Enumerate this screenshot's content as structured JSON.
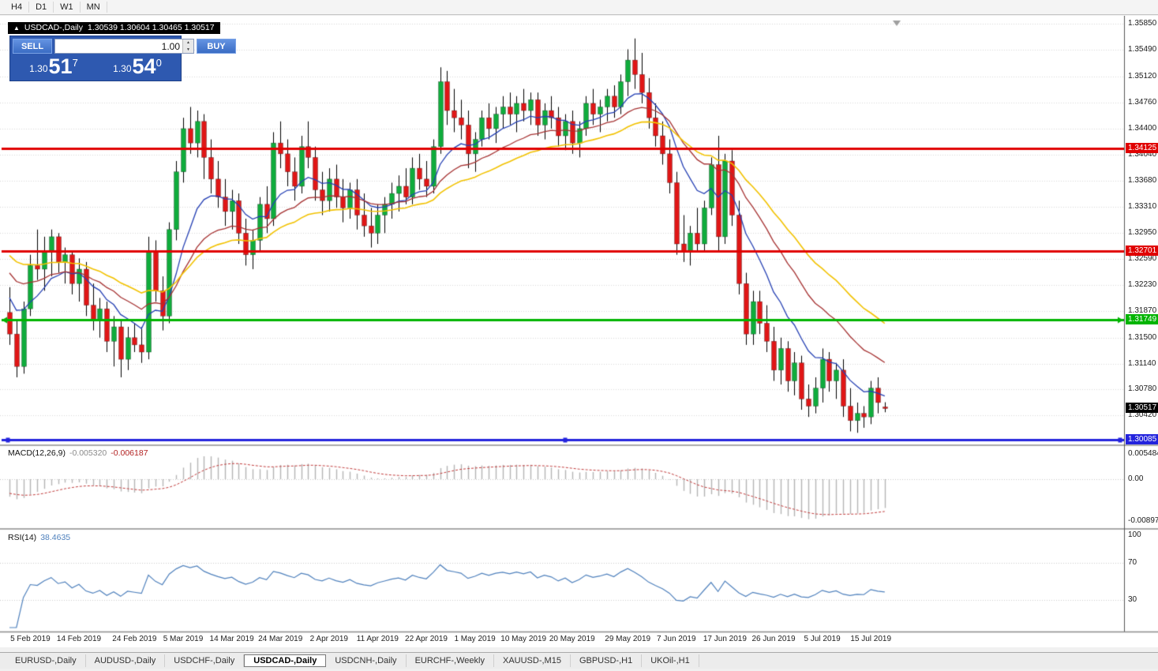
{
  "window": {
    "timeframes": [
      "H4",
      "D1",
      "W1",
      "MN"
    ]
  },
  "chart": {
    "symbol_label": "USDCAD-,Daily",
    "ohlc_values": "1.30539 1.30604 1.30465 1.30517"
  },
  "trade_panel": {
    "sell_label": "SELL",
    "buy_label": "BUY",
    "volume": "1.00",
    "sell_price": {
      "base": "1.30",
      "pips": "51",
      "frac": "7"
    },
    "buy_price": {
      "base": "1.30",
      "pips": "54",
      "frac": "0"
    }
  },
  "price_axis": {
    "labels": [
      "1.35850",
      "1.35490",
      "1.35120",
      "1.34760",
      "1.34400",
      "1.34040",
      "1.33680",
      "1.33310",
      "1.32950",
      "1.32590",
      "1.32230",
      "1.31870",
      "1.31500",
      "1.31140",
      "1.30780",
      "1.30420"
    ],
    "current_price": "1.30517",
    "current_color": "#000000"
  },
  "hlines": [
    {
      "name": "resistance-line-upper",
      "price": 1.34125,
      "label": "1.34125",
      "color": "#e00000"
    },
    {
      "name": "resistance-line-lower",
      "price": 1.32701,
      "label": "1.32701",
      "color": "#e00000"
    },
    {
      "name": "support-line-green",
      "price": 1.31749,
      "label": "1.31749",
      "color": "#00b400",
      "arrows": true
    },
    {
      "name": "support-line-blue",
      "price": 1.30085,
      "label": "1.30085",
      "color": "#2323dd",
      "handles": true
    }
  ],
  "macd_panel": {
    "title": "MACD(12,26,9)",
    "main_value": "-0.005320",
    "signal_value": "-0.006187",
    "axis": [
      {
        "text": "0.005484",
        "value": 0.005484
      },
      {
        "text": "0.00",
        "value": 0
      },
      {
        "text": "-0.008973",
        "value": -0.008973
      }
    ]
  },
  "rsi_panel": {
    "title": "RSI(14)",
    "value": "38.4635",
    "axis": [
      {
        "text": "100",
        "value": 100
      },
      {
        "text": "70",
        "value": 70
      },
      {
        "text": "30",
        "value": 30
      }
    ],
    "levels": [
      70,
      30
    ]
  },
  "x_axis": [
    {
      "text": "5 Feb 2019",
      "i": 3
    },
    {
      "text": "14 Feb 2019",
      "i": 10
    },
    {
      "text": "24 Feb 2019",
      "i": 18
    },
    {
      "text": "5 Mar 2019",
      "i": 25
    },
    {
      "text": "14 Mar 2019",
      "i": 32
    },
    {
      "text": "24 Mar 2019",
      "i": 39
    },
    {
      "text": "2 Apr 2019",
      "i": 46
    },
    {
      "text": "11 Apr 2019",
      "i": 53
    },
    {
      "text": "22 Apr 2019",
      "i": 60
    },
    {
      "text": "1 May 2019",
      "i": 67
    },
    {
      "text": "10 May 2019",
      "i": 74
    },
    {
      "text": "20 May 2019",
      "i": 81
    },
    {
      "text": "29 May 2019",
      "i": 89
    },
    {
      "text": "7 Jun 2019",
      "i": 96
    },
    {
      "text": "17 Jun 2019",
      "i": 103
    },
    {
      "text": "26 Jun 2019",
      "i": 110
    },
    {
      "text": "5 Jul 2019",
      "i": 117
    },
    {
      "text": "15 Jul 2019",
      "i": 124
    }
  ],
  "tabs": [
    {
      "label": "EURUSD-,Daily",
      "active": false
    },
    {
      "label": "AUDUSD-,Daily",
      "active": false
    },
    {
      "label": "USDCHF-,Daily",
      "active": false
    },
    {
      "label": "USDCAD-,Daily",
      "active": true
    },
    {
      "label": "USDCNH-,Daily",
      "active": false
    },
    {
      "label": "EURCHF-,Weekly",
      "active": false
    },
    {
      "label": "XAUUSD-,M15",
      "active": false
    },
    {
      "label": "GBPUSD-,H1",
      "active": false
    },
    {
      "label": "UKOil-,H1",
      "active": false
    }
  ],
  "chart_data": {
    "type": "candlestick",
    "symbol": "USDCAD",
    "timeframe": "Daily",
    "bull_color": "#0fac3c",
    "bear_color": "#e01616",
    "moving_averages": [
      {
        "period": 10,
        "color": "#2540b4"
      },
      {
        "period": 21,
        "color": "#a63232"
      },
      {
        "period": 34,
        "color": "#f2c200"
      }
    ],
    "macd": {
      "fast": 12,
      "slow": 26,
      "signal": 9
    },
    "rsi_period": 14,
    "warmup_closes": [
      1.3335,
      1.332,
      1.331,
      1.3295,
      1.3285,
      1.327,
      1.3262,
      1.3255,
      1.3248,
      1.324,
      1.3232,
      1.3225,
      1.3218,
      1.3212,
      1.3205,
      1.3198,
      1.3192,
      1.3186
    ],
    "candles": [
      [
        1.3185,
        1.322,
        1.314,
        1.3155
      ],
      [
        1.3155,
        1.3175,
        1.3095,
        1.311
      ],
      [
        1.311,
        1.32,
        1.31,
        1.319
      ],
      [
        1.319,
        1.3265,
        1.318,
        1.325
      ],
      [
        1.325,
        1.33,
        1.323,
        1.3245
      ],
      [
        1.3245,
        1.329,
        1.3215,
        1.327
      ],
      [
        1.327,
        1.33,
        1.3235,
        1.329
      ],
      [
        1.329,
        1.3295,
        1.324,
        1.3255
      ],
      [
        1.3255,
        1.3275,
        1.3225,
        1.3265
      ],
      [
        1.3265,
        1.327,
        1.321,
        1.3225
      ],
      [
        1.3225,
        1.326,
        1.32,
        1.3245
      ],
      [
        1.3245,
        1.3255,
        1.318,
        1.3195
      ],
      [
        1.3195,
        1.3225,
        1.316,
        1.3175
      ],
      [
        1.3175,
        1.3205,
        1.315,
        1.319
      ],
      [
        1.319,
        1.32,
        1.313,
        1.3145
      ],
      [
        1.3145,
        1.318,
        1.311,
        1.3165
      ],
      [
        1.3165,
        1.3175,
        1.3095,
        1.312
      ],
      [
        1.312,
        1.3165,
        1.3105,
        1.315
      ],
      [
        1.315,
        1.317,
        1.313,
        1.314
      ],
      [
        1.314,
        1.3165,
        1.3115,
        1.313
      ],
      [
        1.313,
        1.329,
        1.312,
        1.327
      ],
      [
        1.327,
        1.3285,
        1.32,
        1.3215
      ],
      [
        1.3215,
        1.3235,
        1.316,
        1.318
      ],
      [
        1.318,
        1.331,
        1.317,
        1.33
      ],
      [
        1.33,
        1.3395,
        1.3285,
        1.338
      ],
      [
        1.338,
        1.3455,
        1.3365,
        1.344
      ],
      [
        1.344,
        1.347,
        1.3405,
        1.342
      ],
      [
        1.342,
        1.3465,
        1.34,
        1.345
      ],
      [
        1.345,
        1.346,
        1.337,
        1.34
      ],
      [
        1.34,
        1.3425,
        1.335,
        1.337
      ],
      [
        1.337,
        1.3395,
        1.333,
        1.3345
      ],
      [
        1.3345,
        1.337,
        1.3305,
        1.3325
      ],
      [
        1.3325,
        1.3355,
        1.33,
        1.334
      ],
      [
        1.334,
        1.335,
        1.328,
        1.3295
      ],
      [
        1.3295,
        1.3315,
        1.325,
        1.3265
      ],
      [
        1.3265,
        1.33,
        1.3245,
        1.3285
      ],
      [
        1.3285,
        1.3345,
        1.327,
        1.3335
      ],
      [
        1.3335,
        1.336,
        1.3295,
        1.3315
      ],
      [
        1.3315,
        1.3435,
        1.3305,
        1.342
      ],
      [
        1.342,
        1.345,
        1.3385,
        1.3405
      ],
      [
        1.3405,
        1.3425,
        1.336,
        1.338
      ],
      [
        1.338,
        1.34,
        1.334,
        1.336
      ],
      [
        1.336,
        1.343,
        1.335,
        1.3415
      ],
      [
        1.3415,
        1.345,
        1.3385,
        1.34
      ],
      [
        1.34,
        1.3415,
        1.334,
        1.3355
      ],
      [
        1.3355,
        1.338,
        1.332,
        1.334
      ],
      [
        1.334,
        1.3385,
        1.3325,
        1.337
      ],
      [
        1.337,
        1.339,
        1.333,
        1.3345
      ],
      [
        1.3345,
        1.337,
        1.331,
        1.333
      ],
      [
        1.333,
        1.3365,
        1.3315,
        1.3355
      ],
      [
        1.3355,
        1.337,
        1.33,
        1.332
      ],
      [
        1.332,
        1.335,
        1.329,
        1.3305
      ],
      [
        1.3305,
        1.333,
        1.3275,
        1.3295
      ],
      [
        1.3295,
        1.3335,
        1.328,
        1.332
      ],
      [
        1.332,
        1.3345,
        1.3295,
        1.3335
      ],
      [
        1.3335,
        1.3365,
        1.3315,
        1.335
      ],
      [
        1.335,
        1.3375,
        1.3325,
        1.336
      ],
      [
        1.336,
        1.3385,
        1.3335,
        1.3345
      ],
      [
        1.3345,
        1.34,
        1.3335,
        1.3385
      ],
      [
        1.3385,
        1.3405,
        1.3355,
        1.337
      ],
      [
        1.337,
        1.3395,
        1.3345,
        1.336
      ],
      [
        1.336,
        1.3425,
        1.335,
        1.3415
      ],
      [
        1.3415,
        1.3525,
        1.3405,
        1.3505
      ],
      [
        1.3505,
        1.352,
        1.3445,
        1.3465
      ],
      [
        1.3465,
        1.3495,
        1.3435,
        1.3455
      ],
      [
        1.3455,
        1.348,
        1.3425,
        1.3445
      ],
      [
        1.3445,
        1.3465,
        1.3385,
        1.3405
      ],
      [
        1.3405,
        1.3435,
        1.338,
        1.3425
      ],
      [
        1.3425,
        1.3465,
        1.3415,
        1.3455
      ],
      [
        1.3455,
        1.3475,
        1.3425,
        1.344
      ],
      [
        1.344,
        1.347,
        1.342,
        1.346
      ],
      [
        1.346,
        1.3485,
        1.344,
        1.347
      ],
      [
        1.347,
        1.349,
        1.3445,
        1.346
      ],
      [
        1.346,
        1.3485,
        1.3435,
        1.3475
      ],
      [
        1.3475,
        1.3495,
        1.345,
        1.3465
      ],
      [
        1.3465,
        1.349,
        1.3445,
        1.348
      ],
      [
        1.348,
        1.349,
        1.343,
        1.3445
      ],
      [
        1.3445,
        1.3475,
        1.3425,
        1.3465
      ],
      [
        1.3465,
        1.3485,
        1.344,
        1.3455
      ],
      [
        1.3455,
        1.347,
        1.3415,
        1.343
      ],
      [
        1.343,
        1.346,
        1.341,
        1.345
      ],
      [
        1.345,
        1.3465,
        1.3405,
        1.342
      ],
      [
        1.342,
        1.345,
        1.34,
        1.344
      ],
      [
        1.344,
        1.3485,
        1.343,
        1.3475
      ],
      [
        1.3475,
        1.3495,
        1.3445,
        1.346
      ],
      [
        1.346,
        1.348,
        1.3435,
        1.347
      ],
      [
        1.347,
        1.3495,
        1.345,
        1.3485
      ],
      [
        1.3485,
        1.35,
        1.3455,
        1.347
      ],
      [
        1.347,
        1.3515,
        1.346,
        1.3505
      ],
      [
        1.3505,
        1.355,
        1.3485,
        1.3535
      ],
      [
        1.3535,
        1.3565,
        1.3495,
        1.3515
      ],
      [
        1.3515,
        1.3545,
        1.3475,
        1.349
      ],
      [
        1.349,
        1.351,
        1.344,
        1.3455
      ],
      [
        1.3455,
        1.3475,
        1.3415,
        1.343
      ],
      [
        1.343,
        1.345,
        1.339,
        1.3405
      ],
      [
        1.3405,
        1.3425,
        1.335,
        1.3365
      ],
      [
        1.3365,
        1.338,
        1.3265,
        1.328
      ],
      [
        1.328,
        1.332,
        1.3255,
        1.327
      ],
      [
        1.327,
        1.3305,
        1.325,
        1.3295
      ],
      [
        1.3295,
        1.333,
        1.327,
        1.328
      ],
      [
        1.328,
        1.334,
        1.327,
        1.333
      ],
      [
        1.333,
        1.34,
        1.332,
        1.339
      ],
      [
        1.339,
        1.343,
        1.327,
        1.329
      ],
      [
        1.329,
        1.3405,
        1.328,
        1.3395
      ],
      [
        1.3395,
        1.341,
        1.3305,
        1.332
      ],
      [
        1.332,
        1.334,
        1.321,
        1.3225
      ],
      [
        1.3225,
        1.324,
        1.314,
        1.3155
      ],
      [
        1.3155,
        1.3215,
        1.314,
        1.32
      ],
      [
        1.32,
        1.3215,
        1.3155,
        1.317
      ],
      [
        1.317,
        1.3195,
        1.313,
        1.3145
      ],
      [
        1.3145,
        1.3165,
        1.309,
        1.3105
      ],
      [
        1.3105,
        1.315,
        1.3085,
        1.3135
      ],
      [
        1.3135,
        1.3145,
        1.3075,
        1.309
      ],
      [
        1.309,
        1.313,
        1.307,
        1.3115
      ],
      [
        1.3115,
        1.3125,
        1.305,
        1.3065
      ],
      [
        1.3065,
        1.3085,
        1.304,
        1.3055
      ],
      [
        1.3055,
        1.3095,
        1.3045,
        1.308
      ],
      [
        1.308,
        1.3135,
        1.306,
        1.312
      ],
      [
        1.312,
        1.313,
        1.3075,
        1.309
      ],
      [
        1.309,
        1.3115,
        1.3065,
        1.3105
      ],
      [
        1.3105,
        1.312,
        1.304,
        1.3055
      ],
      [
        1.3055,
        1.308,
        1.302,
        1.3035
      ],
      [
        1.3035,
        1.306,
        1.3018,
        1.3045
      ],
      [
        1.3045,
        1.3055,
        1.3025,
        1.304
      ],
      [
        1.304,
        1.309,
        1.303,
        1.308
      ],
      [
        1.308,
        1.3095,
        1.3045,
        1.306
      ],
      [
        1.30539,
        1.30604,
        1.30465,
        1.30517
      ]
    ]
  }
}
